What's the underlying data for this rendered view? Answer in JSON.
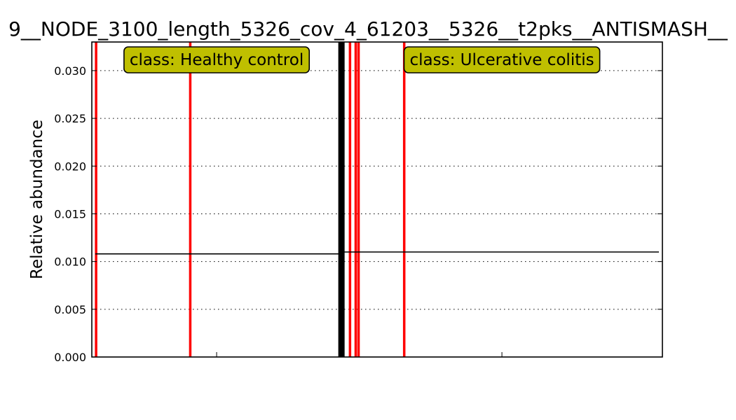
{
  "chart_data": {
    "type": "bar",
    "title": "9__NODE_3100_length_5326_cov_4_61203__5326__t2pks__ANTISMASH__",
    "xlabel": "",
    "ylabel": "Relative abundance",
    "ylim": [
      0,
      0.033
    ],
    "yticks": [
      "0.000",
      "0.005",
      "0.010",
      "0.015",
      "0.020",
      "0.025",
      "0.030"
    ],
    "grid": true,
    "bar_color": "#ff0000",
    "separator_color": "#000000",
    "box_color": "#bfbf00",
    "sample_count": 200,
    "classes": [
      {
        "label": "class: Healthy control",
        "mean": 0.0108,
        "samples": [
          {
            "index": 1,
            "value": 0.033
          },
          {
            "index": 34,
            "value": 0.033
          }
        ]
      },
      {
        "label": "class: Ulcerative colitis",
        "mean": 0.011,
        "samples": [
          {
            "index": 90,
            "value": 0.033
          },
          {
            "index": 92,
            "value": 0.033
          },
          {
            "index": 93,
            "value": 0.033
          },
          {
            "index": 109,
            "value": 0.033
          }
        ]
      }
    ],
    "separator_index": 87.5
  }
}
